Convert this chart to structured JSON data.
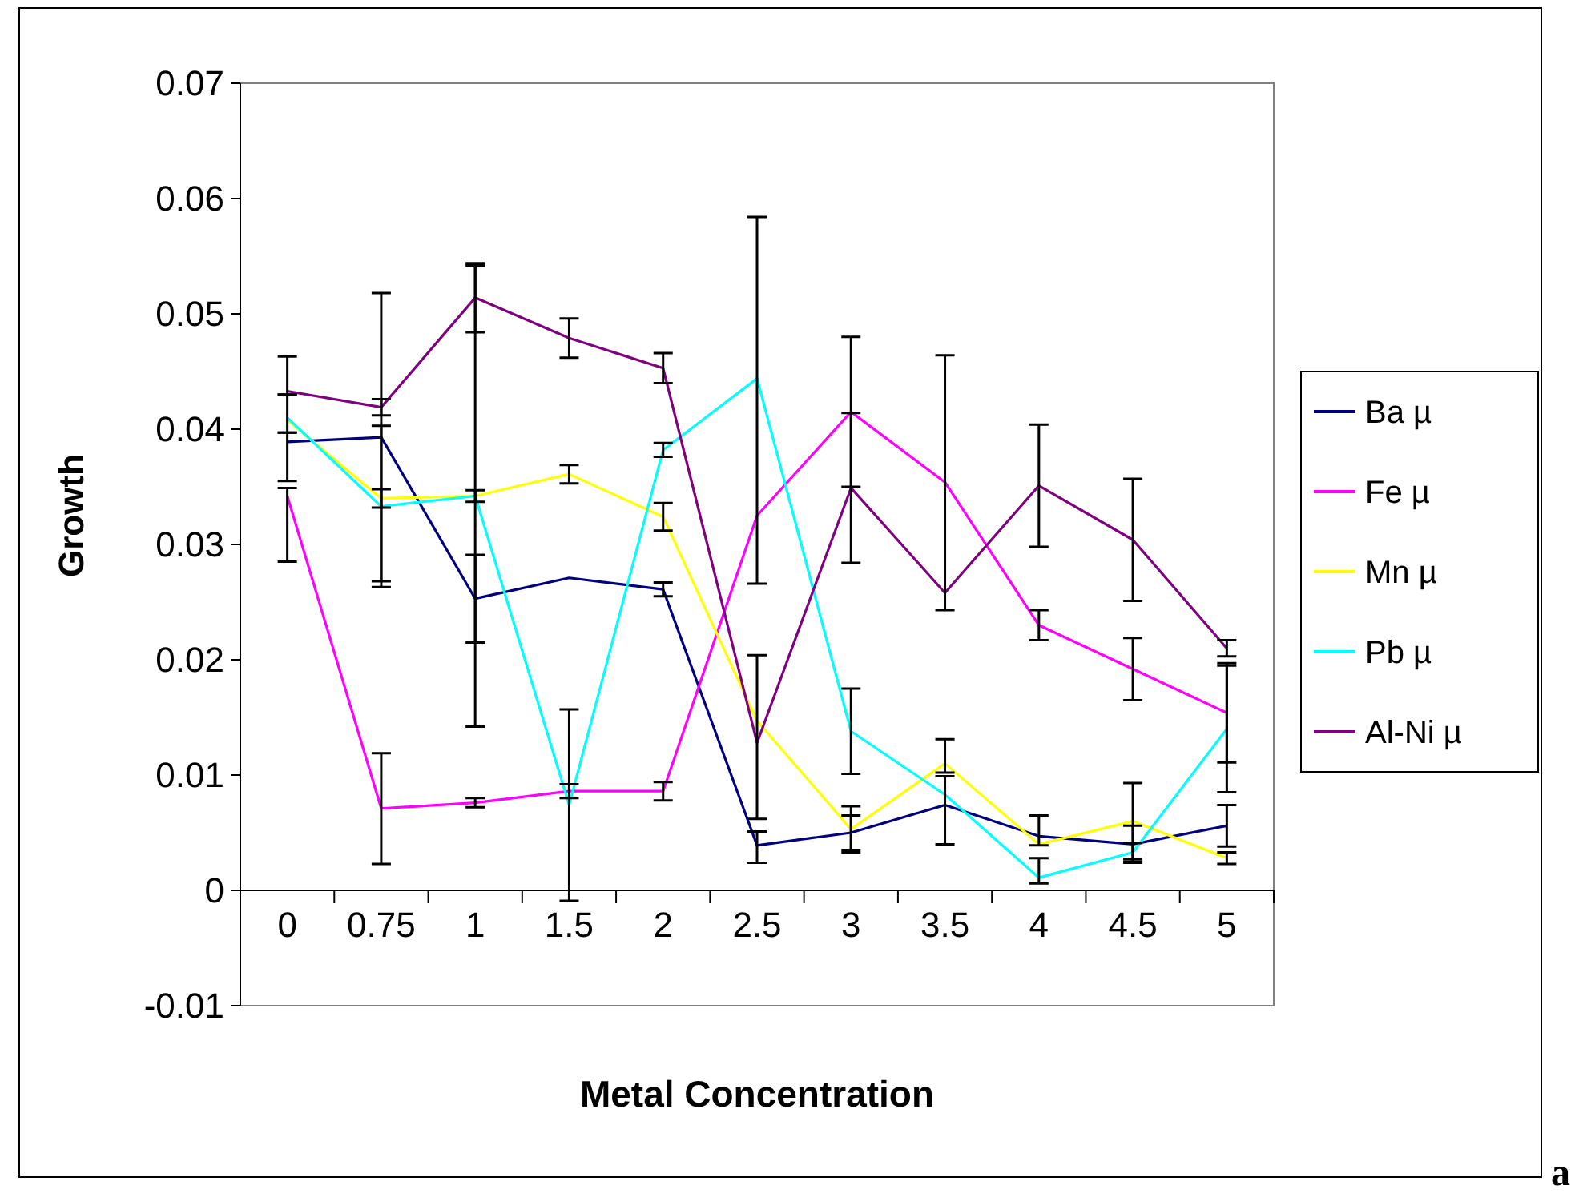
{
  "chart_data": {
    "type": "line",
    "xlabel": "Metal Concentration",
    "ylabel": "Growth",
    "categories": [
      "0",
      "0.75",
      "1",
      "1.5",
      "2",
      "2.5",
      "3",
      "3.5",
      "4",
      "4.5",
      "5"
    ],
    "ylim": [
      -0.01,
      0.07
    ],
    "yticks": [
      -0.01,
      0,
      0.01,
      0.02,
      0.03,
      0.04,
      0.05,
      0.06,
      0.07
    ],
    "grid": false,
    "legend": "right",
    "marker": "none",
    "annotations": [
      "a"
    ],
    "series": [
      {
        "name": "Ba µ",
        "color": "#000080",
        "values": [
          0.0389,
          0.0393,
          0.0253,
          0.0271,
          0.0261,
          0.0039,
          0.005,
          0.0074,
          0.0047,
          0.004,
          0.0056
        ],
        "errors": [
          [
            0.0355,
            0.0397
          ],
          0.0125,
          0.0038,
          null,
          0.0006,
          [
            0.0024,
            0.0051
          ],
          0.0015,
          [
            0.004,
            0.0099
          ],
          [
            0.0039,
            0.0065
          ],
          0.0016,
          0.0018
        ]
      },
      {
        "name": "Fe µ",
        "color": "#ff00ff",
        "values": [
          0.0342,
          0.0071,
          0.0076,
          0.0086,
          0.0086,
          0.0325,
          0.0415,
          0.0354,
          0.023,
          0.0192,
          0.0154
        ],
        "errors": [
          [
            0.0285,
            0.0349
          ],
          0.0048,
          0.0004,
          0.0006,
          0.0008,
          [
            0.0266,
            0.0584
          ],
          0.0065,
          [
            0.0243,
            0.0464
          ],
          0.0013,
          0.0027,
          0.0043
        ]
      },
      {
        "name": "Mn µ",
        "color": "#ffff00",
        "values": [
          0.0408,
          0.034,
          0.0342,
          0.0361,
          0.0324,
          0.0147,
          0.0053,
          0.011,
          0.004,
          0.006,
          0.0028
        ],
        "errors": [
          [
            0.0397,
            0.043
          ],
          0.0008,
          0.02,
          0.0008,
          0.0012,
          null,
          0.002,
          [
            0.0102,
            0.0131
          ],
          null,
          0.0033,
          0.0005
        ]
      },
      {
        "name": "Pb µ",
        "color": "#00ffff",
        "values": [
          0.041,
          0.0333,
          0.0342,
          0.0074,
          0.0382,
          0.0444,
          0.0138,
          0.0083,
          0.0011,
          0.0033,
          0.014
        ],
        "errors": [
          null,
          0.007,
          0.0005,
          0.0083,
          0.0006,
          null,
          0.0037,
          null,
          [
            0.0006,
            0.0028
          ],
          0.0008,
          0.0055
        ]
      },
      {
        "name": "Al-Ni µ",
        "color": "#800080",
        "values": [
          0.0433,
          0.0419,
          0.0514,
          0.0479,
          0.0453,
          0.0128,
          0.0349,
          0.0258,
          0.0351,
          0.0304,
          0.021
        ],
        "errors": [
          [
            0.043,
            0.0463
          ],
          0.0007,
          0.003,
          0.0017,
          0.0013,
          [
            0.0062,
            0.0204
          ],
          0.0065,
          null,
          0.0053,
          0.0053,
          0.0007
        ]
      }
    ]
  }
}
